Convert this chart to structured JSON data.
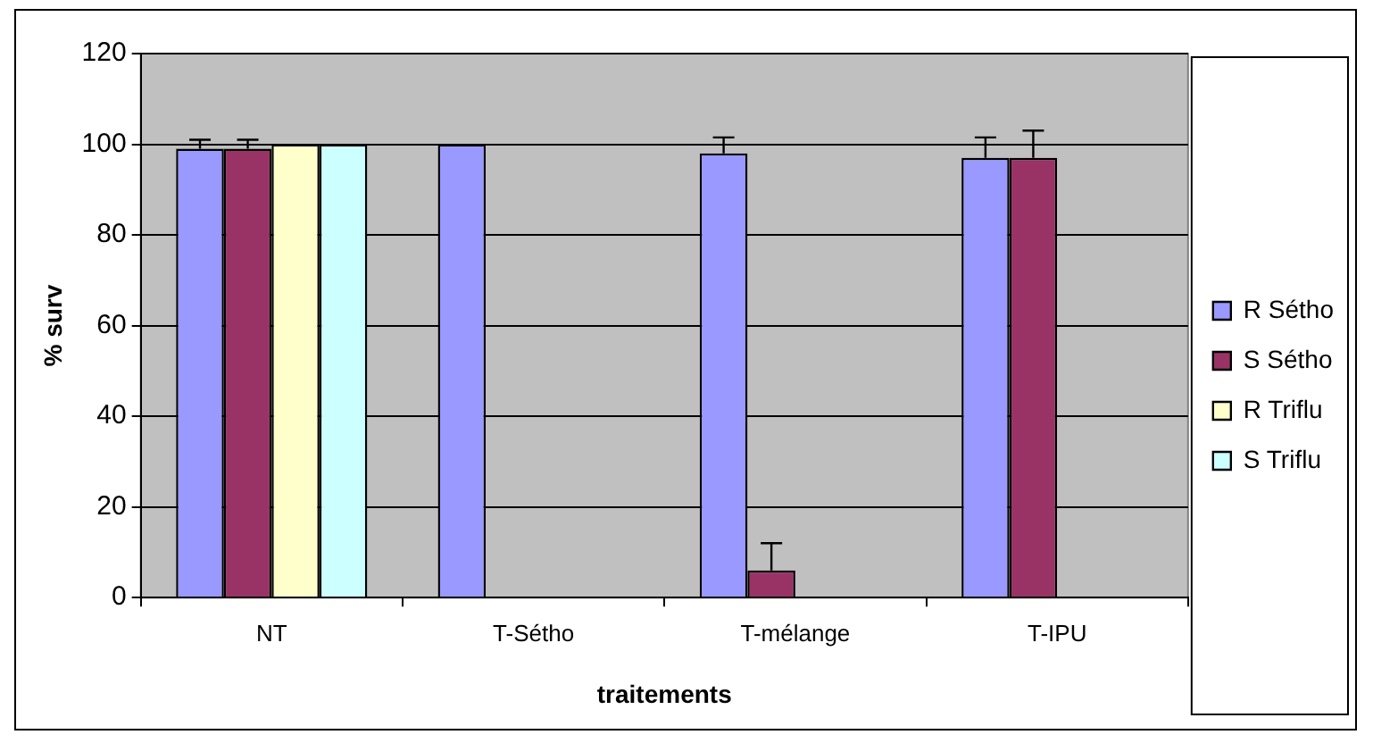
{
  "chart_data": {
    "type": "bar",
    "xlabel": "traitements",
    "ylabel": "% surv",
    "categories": [
      "NT",
      "T-Sétho",
      "T-mélange",
      "T-IPU"
    ],
    "series": [
      {
        "name": "R Sétho",
        "color": "#9999ff",
        "values": [
          99,
          100,
          98,
          97
        ],
        "errors": [
          [
            99,
            101
          ],
          null,
          [
            98,
            101.5
          ],
          [
            97,
            101.5
          ]
        ]
      },
      {
        "name": "S Sétho",
        "color": "#993366",
        "values": [
          99,
          0,
          6,
          97
        ],
        "errors": [
          [
            99,
            101
          ],
          null,
          [
            6,
            12
          ],
          [
            97,
            103
          ]
        ]
      },
      {
        "name": "R Triflu",
        "color": "#ffffcc",
        "values": [
          100,
          null,
          null,
          null
        ]
      },
      {
        "name": "S Triflu",
        "color": "#ccffff",
        "values": [
          100,
          null,
          null,
          null
        ]
      }
    ],
    "ylim": [
      0,
      120
    ],
    "yticks": [
      0,
      20,
      40,
      60,
      80,
      100,
      120
    ],
    "grid": "y",
    "legend": "right"
  }
}
